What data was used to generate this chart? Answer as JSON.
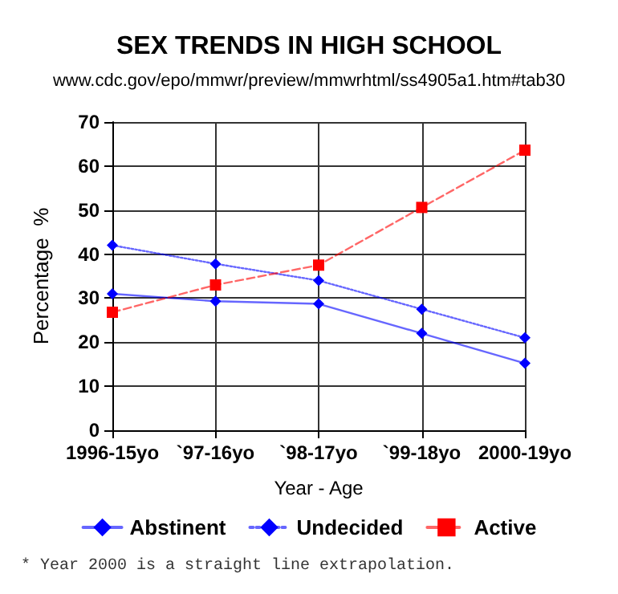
{
  "chart_data": {
    "type": "line",
    "title": "SEX TRENDS IN HIGH SCHOOL",
    "subtitle": "www.cdc.gov/epo/mmwr/preview/mmwrhtml/ss4905a1.htm#tab30",
    "xlabel": "Year - Age",
    "ylabel": "Percentage  %",
    "categories": [
      "1996-15yo",
      "`97-16yo",
      "`98-17yo",
      "`99-18yo",
      "2000-19yo"
    ],
    "series": [
      {
        "name": "Abstinent",
        "color": "#0000ff",
        "marker": "diamond",
        "line_style": "solid",
        "values": [
          31,
          29.3,
          28.7,
          22,
          15.2
        ]
      },
      {
        "name": "Undecided",
        "color": "#0000ff",
        "marker": "diamond",
        "line_style": "dotted",
        "values": [
          42,
          37.8,
          34,
          27.5,
          21
        ]
      },
      {
        "name": "Active",
        "color": "#ff0000",
        "marker": "square",
        "line_style": "dashed",
        "values": [
          26.8,
          33,
          37.5,
          50.6,
          63.6
        ]
      }
    ],
    "ylim": [
      0,
      70
    ],
    "yticks": [
      0,
      10,
      20,
      30,
      40,
      50,
      60,
      70
    ],
    "grid": true,
    "legend": "bottom",
    "annotations": [
      "* Year 2000 is a straight line extrapolation."
    ]
  }
}
